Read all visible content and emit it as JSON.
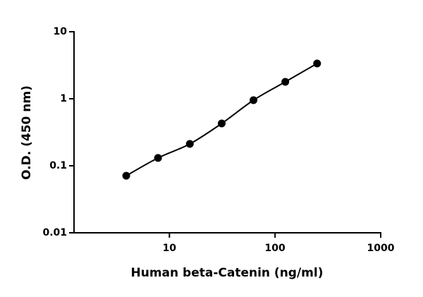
{
  "chart_data": {
    "type": "scatter",
    "x_label": "Human beta-Catenin (ng/ml)",
    "y_label": "O.D. (450 nm)",
    "x": [
      3.9,
      7.8,
      15.6,
      31.25,
      62.5,
      125,
      250
    ],
    "values": [
      0.071,
      0.131,
      0.212,
      0.428,
      0.953,
      1.79,
      3.36
    ],
    "color": "#000000",
    "fit_curve": true,
    "log_x": true,
    "log_y": true,
    "xlim": [
      1.25,
      1000
    ],
    "xticks": [
      10,
      100,
      1000
    ],
    "ylim": [
      0.01,
      10
    ],
    "yticks": [
      0.01,
      0.1,
      1,
      10
    ]
  }
}
